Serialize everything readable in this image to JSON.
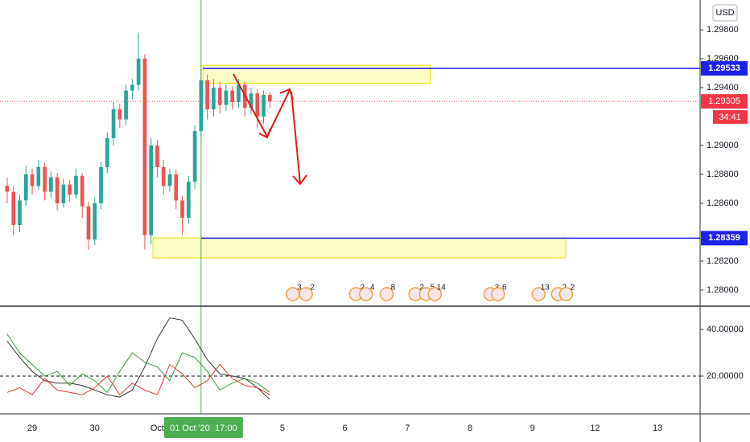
{
  "chart_data": [
    {
      "type": "candlestick",
      "currency": "USD",
      "xlim": [
        -0.515,
        10.68
      ],
      "ylim": [
        1.27894,
        1.30006
      ],
      "xticks": [
        {
          "value": 0,
          "label": "29"
        },
        {
          "value": 1,
          "label": "30"
        },
        {
          "value": 2,
          "label": "Oct"
        },
        {
          "value": 4,
          "label": "5"
        },
        {
          "value": 5,
          "label": "6"
        },
        {
          "value": 6,
          "label": "7"
        },
        {
          "value": 7,
          "label": "8"
        },
        {
          "value": 8,
          "label": "9"
        },
        {
          "value": 9,
          "label": "12"
        },
        {
          "value": 10,
          "label": "13"
        }
      ],
      "yticks": [
        {
          "value": 1.298,
          "label": "1.29800"
        },
        {
          "value": 1.296,
          "label": "1.29600"
        },
        {
          "value": 1.294,
          "label": "1.29400"
        },
        {
          "value": 1.29,
          "label": "1.29000"
        },
        {
          "value": 1.288,
          "label": "1.28800"
        },
        {
          "value": 1.286,
          "label": "1.28600"
        },
        {
          "value": 1.282,
          "label": "1.28200"
        },
        {
          "value": 1.28,
          "label": "1.28000"
        }
      ],
      "up_color": "#26a69a",
      "down_color": "#ef5350",
      "x": [
        -0.4,
        -0.3,
        -0.2,
        -0.1,
        0,
        0.1,
        0.2,
        0.3,
        0.4,
        0.5,
        0.6,
        0.7,
        0.8,
        0.9,
        1.0,
        1.1,
        1.2,
        1.3,
        1.4,
        1.5,
        1.6,
        1.7,
        1.8,
        1.9,
        2.0,
        2.1,
        2.2,
        2.3,
        2.4,
        2.5,
        2.6,
        2.7,
        2.8,
        2.9,
        3.0,
        3.1,
        3.2,
        3.3,
        3.4,
        3.5,
        3.6,
        3.7,
        3.8
      ],
      "open": [
        1.2872,
        1.2868,
        1.2845,
        1.2862,
        1.288,
        1.2872,
        1.2885,
        1.2868,
        1.2878,
        1.286,
        1.2873,
        1.2866,
        1.2879,
        1.2858,
        1.2835,
        1.286,
        1.2885,
        1.2905,
        1.2925,
        1.2918,
        1.2938,
        1.2942,
        1.296,
        1.2838,
        1.29,
        1.2885,
        1.2872,
        1.288,
        1.2862,
        1.285,
        1.2875,
        1.291,
        1.2945,
        1.2925,
        1.294,
        1.2928,
        1.2938,
        1.293,
        1.2942,
        1.2926,
        1.2936,
        1.292,
        1.2935
      ],
      "high": [
        1.2878,
        1.2872,
        1.2866,
        1.2886,
        1.2884,
        1.289,
        1.2888,
        1.2882,
        1.2881,
        1.2877,
        1.2876,
        1.2884,
        1.2881,
        1.2861,
        1.2864,
        1.2889,
        1.2909,
        1.293,
        1.2929,
        1.2942,
        1.2946,
        1.2978,
        1.2963,
        1.2905,
        1.2904,
        1.289,
        1.2884,
        1.2883,
        1.2865,
        1.2879,
        1.2914,
        1.2953,
        1.2949,
        1.2946,
        1.2944,
        1.2942,
        1.2941,
        1.2946,
        1.2944,
        1.294,
        1.2939,
        1.2938,
        1.2937
      ],
      "low": [
        1.286,
        1.2838,
        1.284,
        1.2858,
        1.2866,
        1.2869,
        1.2862,
        1.2864,
        1.2855,
        1.2857,
        1.2861,
        1.2863,
        1.285,
        1.2828,
        1.2831,
        1.2856,
        1.2881,
        1.29,
        1.2912,
        1.2914,
        1.2932,
        1.2938,
        1.2828,
        1.2832,
        1.2878,
        1.2866,
        1.2868,
        1.2856,
        1.2838,
        1.2846,
        1.287,
        1.2906,
        1.2918,
        1.292,
        1.2922,
        1.2924,
        1.2925,
        1.2926,
        1.292,
        1.2922,
        1.2912,
        1.2915,
        1.2926
      ],
      "close": [
        1.2868,
        1.2845,
        1.2862,
        1.288,
        1.2872,
        1.2885,
        1.2868,
        1.2878,
        1.286,
        1.2873,
        1.2866,
        1.2879,
        1.2858,
        1.2835,
        1.286,
        1.2885,
        1.2905,
        1.2925,
        1.2918,
        1.2938,
        1.2942,
        1.296,
        1.2838,
        1.29,
        1.2885,
        1.2872,
        1.288,
        1.2862,
        1.285,
        1.2875,
        1.291,
        1.2945,
        1.2925,
        1.294,
        1.2928,
        1.2938,
        1.293,
        1.2942,
        1.2926,
        1.2936,
        1.292,
        1.2935,
        1.29305
      ],
      "last_price": 1.29305,
      "countdown": "34:41",
      "levels": [
        {
          "value": 1.29533,
          "x0": 2.73,
          "color": "#1e22e6"
        },
        {
          "value": 1.28359,
          "x0": 2.7,
          "color": "#1e22e6"
        }
      ],
      "zones": [
        {
          "x": [
            2.73,
            6.37
          ],
          "y": [
            1.2943,
            1.29555
          ]
        },
        {
          "x": [
            1.93,
            8.53
          ],
          "y": [
            1.28222,
            1.28361
          ]
        }
      ],
      "crosshair": {
        "x": 2.7,
        "label": "01 Oct '20  17:00"
      },
      "events": [
        {
          "x": 4.27,
          "label": "3"
        },
        {
          "x": 4.48,
          "label": "2"
        },
        {
          "x": 5.28,
          "label": "2"
        },
        {
          "x": 5.44,
          "label": "4"
        },
        {
          "x": 5.77,
          "label": "8"
        },
        {
          "x": 6.23,
          "label": "2"
        },
        {
          "x": 6.4,
          "label": "5"
        },
        {
          "x": 6.54,
          "label": "14"
        },
        {
          "x": 7.43,
          "label": "3"
        },
        {
          "x": 7.55,
          "label": "6"
        },
        {
          "x": 8.2,
          "label": "13"
        },
        {
          "x": 8.51,
          "label": "2"
        },
        {
          "x": 8.64,
          "label": "2"
        }
      ]
    },
    {
      "type": "line",
      "xlim": [
        -0.515,
        10.68
      ],
      "ylim": [
        3.8,
        49.3
      ],
      "yticks": [
        {
          "value": 40,
          "label": "40.00000"
        },
        {
          "value": 20,
          "label": "20.00000"
        }
      ],
      "hline": 20,
      "x": [
        -0.4,
        -0.2,
        0,
        0.2,
        0.4,
        0.6,
        0.8,
        1.0,
        1.2,
        1.4,
        1.6,
        1.8,
        2.0,
        2.2,
        2.4,
        2.6,
        2.8,
        3.0,
        3.2,
        3.4,
        3.6,
        3.8
      ],
      "series": [
        {
          "color": "#333333",
          "values": [
            35,
            28,
            22,
            18,
            17,
            17,
            16,
            14,
            12,
            11,
            14,
            24,
            36,
            45,
            44,
            36,
            27,
            21,
            20,
            19,
            15,
            10
          ]
        },
        {
          "color": "#3c9c3c",
          "values": [
            38,
            30,
            25,
            20,
            22,
            16,
            21,
            18,
            13,
            22,
            30,
            26,
            24,
            18,
            30,
            28,
            22,
            14,
            17,
            19,
            17,
            13
          ]
        },
        {
          "color": "#e53935",
          "values": [
            13,
            15,
            12,
            19,
            14,
            13,
            12,
            15,
            20,
            12,
            17,
            14,
            12,
            25,
            21,
            15,
            18,
            25,
            19,
            16,
            15,
            12
          ]
        }
      ]
    }
  ]
}
